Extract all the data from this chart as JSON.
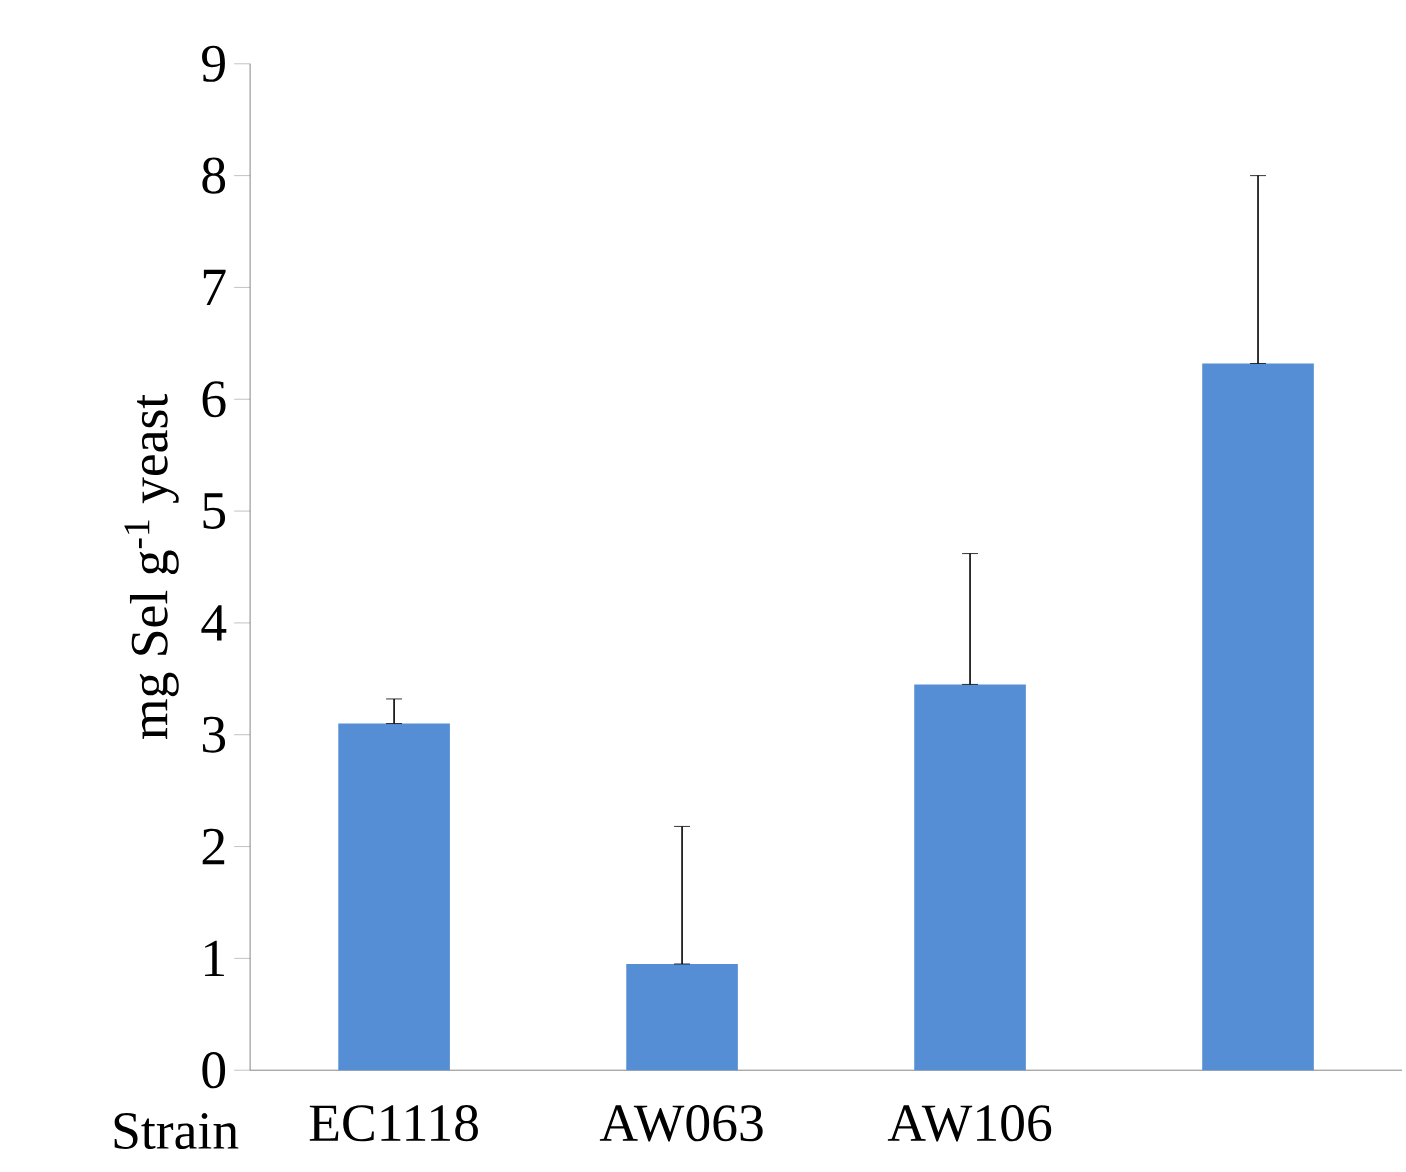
{
  "chart_data": {
    "type": "bar",
    "xlabel": "Strain",
    "ylabel": "mg Sel g$^{-1}$ yeast",
    "categories": [
      "EC1118",
      "AW063",
      "AW106",
      null
    ],
    "values": [
      3.1,
      0.95,
      3.45,
      6.32
    ],
    "errors": [
      [
        3.1,
        3.32
      ],
      [
        0.95,
        2.18
      ],
      [
        3.45,
        4.62
      ],
      [
        6.32,
        8.0
      ]
    ],
    "color": "#558ed5",
    "ylim": [
      0,
      9
    ],
    "yticks": [
      0,
      1,
      2,
      3,
      4,
      5,
      6,
      7,
      8,
      9
    ]
  }
}
